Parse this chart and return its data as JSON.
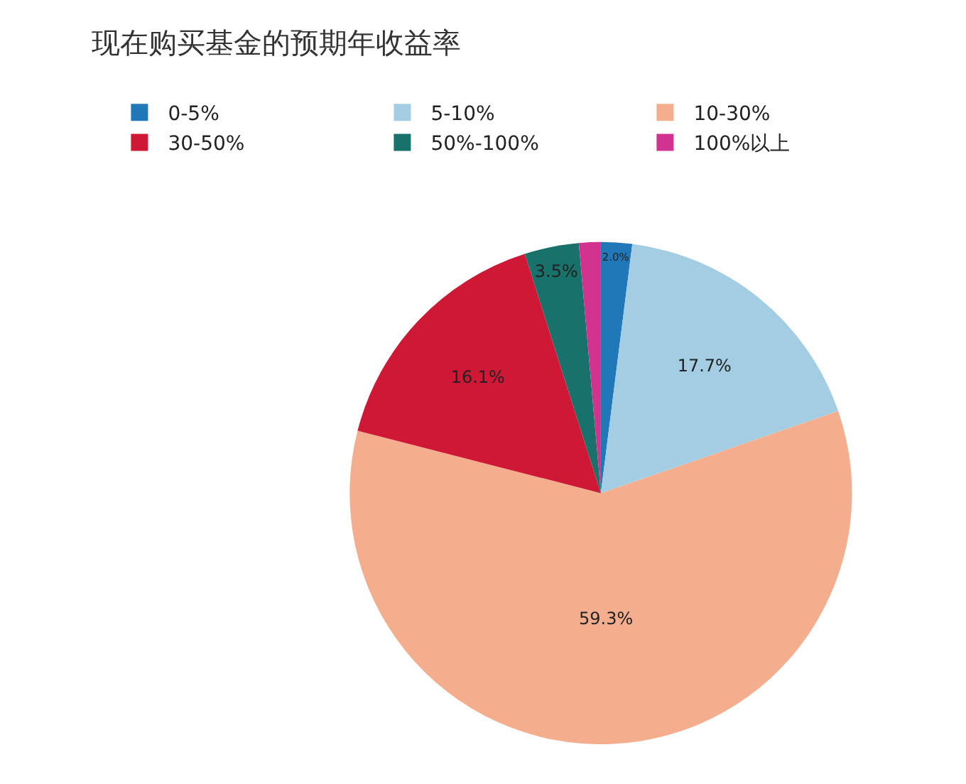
{
  "chart_data": {
    "type": "pie",
    "title": "现在购买基金的预期年收益率",
    "categories": [
      "0-5%",
      "5-10%",
      "10-30%",
      "30-50%",
      "50%-100%",
      "100%以上"
    ],
    "values": [
      2.0,
      17.7,
      59.3,
      16.1,
      3.5,
      1.4
    ],
    "value_labels": [
      "2.0%",
      "17.7%",
      "59.3%",
      "16.1%",
      "3.5%",
      null
    ],
    "colors": [
      "#2178b8",
      "#a3cde3",
      "#f4ae8e",
      "#cf1836",
      "#18716a",
      "#d2338f"
    ],
    "legend": "top left"
  }
}
